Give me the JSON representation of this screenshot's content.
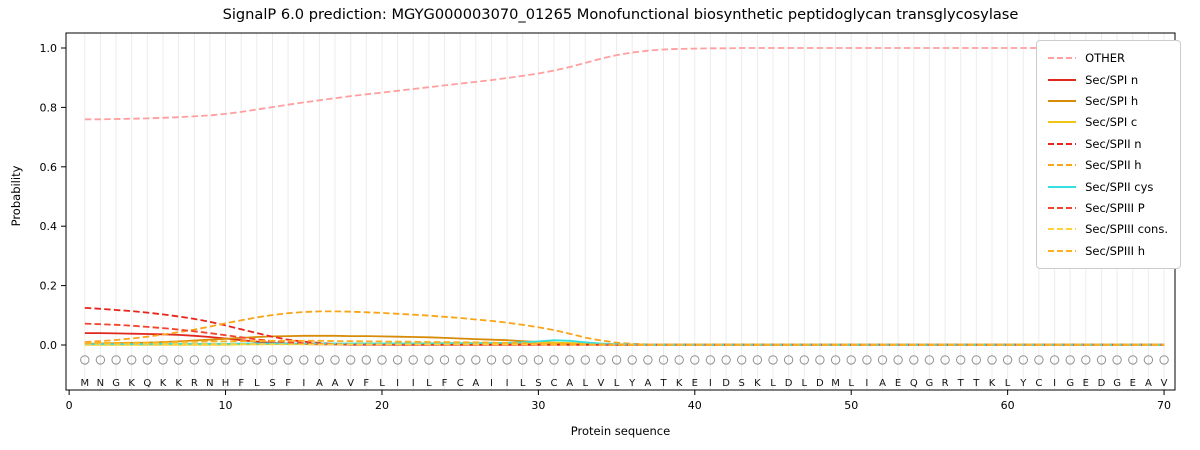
{
  "chart_data": {
    "type": "line",
    "title": "SignalP 6.0 prediction: MGYG000003070_01265 Monofunctional biosynthetic peptidoglycan transglycosylase",
    "xlabel": "Protein sequence",
    "ylabel": "Probability",
    "xlim": [
      -0.2,
      70.7
    ],
    "ylim": [
      -0.152,
      1.05
    ],
    "x_ticks": [
      0,
      10,
      20,
      30,
      40,
      50,
      60,
      70
    ],
    "y_ticks": [
      0.0,
      0.2,
      0.4,
      0.6,
      0.8,
      1.0
    ],
    "grid": "vertical-light-per-position",
    "legend_position": "upper right",
    "x_start": 1,
    "sequence": [
      "M",
      "N",
      "G",
      "K",
      "Q",
      "K",
      "K",
      "R",
      "N",
      "H",
      "F",
      "L",
      "S",
      "F",
      "I",
      "A",
      "A",
      "V",
      "F",
      "L",
      "I",
      "I",
      "L",
      "F",
      "C",
      "A",
      "I",
      "I",
      "L",
      "S",
      "C",
      "A",
      "L",
      "V",
      "L",
      "Y",
      "A",
      "T",
      "K",
      "E",
      "I",
      "D",
      "S",
      "K",
      "L",
      "D",
      "L",
      "D",
      "M",
      "L",
      "I",
      "A",
      "E",
      "Q",
      "G",
      "R",
      "T",
      "T",
      "K",
      "L",
      "Y",
      "C",
      "I",
      "G",
      "E",
      "D",
      "G",
      "E",
      "A",
      "V"
    ],
    "marker_row_value": -0.05,
    "letter_row_value": -0.125,
    "series": [
      {
        "name": "OTHER",
        "color": "#ff9f9f",
        "dash": true,
        "values": [
          0.76,
          0.76,
          0.761,
          0.762,
          0.763,
          0.765,
          0.767,
          0.77,
          0.773,
          0.778,
          0.785,
          0.793,
          0.801,
          0.809,
          0.817,
          0.824,
          0.831,
          0.838,
          0.844,
          0.85,
          0.856,
          0.862,
          0.868,
          0.874,
          0.88,
          0.886,
          0.892,
          0.899,
          0.906,
          0.914,
          0.924,
          0.936,
          0.95,
          0.964,
          0.976,
          0.985,
          0.991,
          0.995,
          0.997,
          0.998,
          0.999,
          0.999,
          1.0,
          1.0,
          1.0,
          1.0,
          1.0,
          1.0,
          1.0,
          1.0,
          1.0,
          1.0,
          1.0,
          1.0,
          1.0,
          1.0,
          1.0,
          1.0,
          1.0,
          1.0,
          1.0,
          1.0,
          1.0,
          1.0,
          1.0,
          1.0,
          1.0,
          1.0,
          1.0,
          1.0
        ]
      },
      {
        "name": "Sec/SPI n",
        "color": "#e0281e",
        "dash": false,
        "values": [
          0.04,
          0.04,
          0.039,
          0.038,
          0.037,
          0.036,
          0.034,
          0.031,
          0.027,
          0.022,
          0.016,
          0.011,
          0.007,
          0.005,
          0.003,
          0.002,
          0.002,
          0.001,
          0.001,
          0.001,
          0.001,
          0.001,
          0.001,
          0.001,
          0.001,
          0.001,
          0.001,
          0.001,
          0.001,
          0.001,
          0.001,
          0.001,
          0.001,
          0.001,
          0.001,
          0.001,
          0.001,
          0.001,
          0.001,
          0.001,
          0.001,
          0.001,
          0.001,
          0.001,
          0.001,
          0.001,
          0.001,
          0.001,
          0.001,
          0.001,
          0.001,
          0.001,
          0.001,
          0.001,
          0.001,
          0.001,
          0.001,
          0.001,
          0.001,
          0.001,
          0.001,
          0.001,
          0.001,
          0.001,
          0.001,
          0.001,
          0.001,
          0.001,
          0.001,
          0.001
        ]
      },
      {
        "name": "Sec/SPI h",
        "color": "#d78b07",
        "dash": false,
        "values": [
          0.004,
          0.005,
          0.006,
          0.007,
          0.008,
          0.01,
          0.012,
          0.015,
          0.018,
          0.021,
          0.024,
          0.027,
          0.029,
          0.03,
          0.031,
          0.031,
          0.031,
          0.03,
          0.03,
          0.029,
          0.028,
          0.027,
          0.026,
          0.024,
          0.022,
          0.02,
          0.018,
          0.016,
          0.013,
          0.01,
          0.008,
          0.005,
          0.003,
          0.002,
          0.001,
          0.001,
          0.001,
          0.001,
          0.001,
          0.001,
          0.001,
          0.001,
          0.001,
          0.001,
          0.001,
          0.001,
          0.001,
          0.001,
          0.001,
          0.001,
          0.001,
          0.001,
          0.001,
          0.001,
          0.001,
          0.001,
          0.001,
          0.001,
          0.001,
          0.001,
          0.001,
          0.001,
          0.001,
          0.001,
          0.001,
          0.001,
          0.001,
          0.001,
          0.001,
          0.001
        ]
      },
      {
        "name": "Sec/SPI c",
        "color": "#f0c514",
        "dash": false,
        "values": [
          0.001,
          0.001,
          0.001,
          0.001,
          0.001,
          0.001,
          0.001,
          0.001,
          0.001,
          0.001,
          0.002,
          0.002,
          0.003,
          0.003,
          0.004,
          0.004,
          0.004,
          0.005,
          0.005,
          0.005,
          0.005,
          0.005,
          0.006,
          0.006,
          0.006,
          0.006,
          0.007,
          0.007,
          0.007,
          0.008,
          0.008,
          0.007,
          0.005,
          0.003,
          0.002,
          0.001,
          0.001,
          0.001,
          0.001,
          0.001,
          0.001,
          0.001,
          0.001,
          0.001,
          0.001,
          0.001,
          0.001,
          0.001,
          0.001,
          0.001,
          0.001,
          0.001,
          0.001,
          0.001,
          0.001,
          0.001,
          0.001,
          0.001,
          0.001,
          0.001,
          0.001,
          0.001,
          0.001,
          0.001,
          0.001,
          0.001,
          0.001,
          0.001,
          0.001,
          0.001
        ]
      },
      {
        "name": "Sec/SPII n",
        "color": "#e8251c",
        "dash": true,
        "values": [
          0.125,
          0.122,
          0.118,
          0.114,
          0.109,
          0.103,
          0.096,
          0.088,
          0.078,
          0.066,
          0.053,
          0.04,
          0.028,
          0.018,
          0.011,
          0.007,
          0.004,
          0.003,
          0.002,
          0.002,
          0.001,
          0.001,
          0.001,
          0.001,
          0.001,
          0.001,
          0.001,
          0.001,
          0.001,
          0.001,
          0.001,
          0.001,
          0.001,
          0.001,
          0.001,
          0.001,
          0.001,
          0.001,
          0.001,
          0.001,
          0.001,
          0.001,
          0.001,
          0.001,
          0.001,
          0.001,
          0.001,
          0.001,
          0.001,
          0.001,
          0.001,
          0.001,
          0.001,
          0.001,
          0.001,
          0.001,
          0.001,
          0.001,
          0.001,
          0.001,
          0.001,
          0.001,
          0.001,
          0.001,
          0.001,
          0.001,
          0.001,
          0.001,
          0.001,
          0.001
        ]
      },
      {
        "name": "Sec/SPII h",
        "color": "#f9a51a",
        "dash": true,
        "values": [
          0.01,
          0.013,
          0.017,
          0.022,
          0.028,
          0.035,
          0.043,
          0.052,
          0.062,
          0.073,
          0.083,
          0.093,
          0.101,
          0.107,
          0.111,
          0.113,
          0.113,
          0.112,
          0.11,
          0.108,
          0.105,
          0.102,
          0.099,
          0.095,
          0.091,
          0.086,
          0.081,
          0.075,
          0.068,
          0.06,
          0.05,
          0.038,
          0.025,
          0.015,
          0.008,
          0.004,
          0.002,
          0.001,
          0.001,
          0.001,
          0.001,
          0.001,
          0.001,
          0.001,
          0.001,
          0.001,
          0.001,
          0.001,
          0.001,
          0.001,
          0.001,
          0.001,
          0.001,
          0.001,
          0.001,
          0.001,
          0.001,
          0.001,
          0.001,
          0.001,
          0.001,
          0.001,
          0.001,
          0.001,
          0.001,
          0.001,
          0.001,
          0.001,
          0.001,
          0.001
        ]
      },
      {
        "name": "Sec/SPII cys",
        "color": "#35e0e0",
        "dash": false,
        "values": [
          0.003,
          0.003,
          0.003,
          0.003,
          0.003,
          0.004,
          0.004,
          0.004,
          0.004,
          0.004,
          0.005,
          0.005,
          0.005,
          0.005,
          0.005,
          0.005,
          0.005,
          0.005,
          0.005,
          0.005,
          0.005,
          0.005,
          0.005,
          0.006,
          0.006,
          0.006,
          0.007,
          0.007,
          0.009,
          0.012,
          0.016,
          0.014,
          0.009,
          0.005,
          0.003,
          0.002,
          0.001,
          0.001,
          0.001,
          0.001,
          0.001,
          0.001,
          0.001,
          0.001,
          0.001,
          0.001,
          0.001,
          0.001,
          0.001,
          0.001,
          0.001,
          0.001,
          0.001,
          0.001,
          0.001,
          0.001,
          0.001,
          0.001,
          0.001,
          0.001,
          0.001,
          0.001,
          0.001,
          0.001,
          0.001,
          0.001,
          0.001,
          0.001,
          0.001,
          0.001
        ]
      },
      {
        "name": "Sec/SPIII P",
        "color": "#f4442e",
        "dash": true,
        "values": [
          0.072,
          0.07,
          0.068,
          0.065,
          0.061,
          0.057,
          0.052,
          0.046,
          0.04,
          0.033,
          0.026,
          0.019,
          0.013,
          0.009,
          0.006,
          0.004,
          0.003,
          0.002,
          0.002,
          0.001,
          0.001,
          0.001,
          0.001,
          0.001,
          0.001,
          0.001,
          0.001,
          0.001,
          0.001,
          0.001,
          0.001,
          0.001,
          0.001,
          0.001,
          0.001,
          0.001,
          0.001,
          0.001,
          0.001,
          0.001,
          0.001,
          0.001,
          0.001,
          0.001,
          0.001,
          0.001,
          0.001,
          0.001,
          0.001,
          0.001,
          0.001,
          0.001,
          0.001,
          0.001,
          0.001,
          0.001,
          0.001,
          0.001,
          0.001,
          0.001,
          0.001,
          0.001,
          0.001,
          0.001,
          0.001,
          0.001,
          0.001,
          0.001,
          0.001,
          0.001
        ]
      },
      {
        "name": "Sec/SPIII cons.",
        "color": "#ffd23c",
        "dash": true,
        "values": [
          0.004,
          0.004,
          0.004,
          0.004,
          0.004,
          0.003,
          0.003,
          0.003,
          0.003,
          0.003,
          0.003,
          0.003,
          0.002,
          0.002,
          0.002,
          0.002,
          0.002,
          0.002,
          0.002,
          0.002,
          0.002,
          0.002,
          0.002,
          0.002,
          0.002,
          0.002,
          0.002,
          0.002,
          0.002,
          0.002,
          0.001,
          0.001,
          0.001,
          0.001,
          0.001,
          0.001,
          0.001,
          0.001,
          0.001,
          0.001,
          0.001,
          0.001,
          0.001,
          0.001,
          0.001,
          0.001,
          0.001,
          0.001,
          0.001,
          0.001,
          0.001,
          0.001,
          0.001,
          0.001,
          0.001,
          0.001,
          0.001,
          0.001,
          0.001,
          0.001,
          0.001,
          0.001,
          0.001,
          0.001,
          0.001,
          0.001,
          0.001,
          0.001,
          0.001,
          0.001
        ]
      },
      {
        "name": "Sec/SPIII h",
        "color": "#ffb020",
        "dash": true,
        "values": [
          0.006,
          0.007,
          0.007,
          0.008,
          0.008,
          0.009,
          0.01,
          0.011,
          0.012,
          0.012,
          0.013,
          0.013,
          0.014,
          0.014,
          0.014,
          0.014,
          0.013,
          0.013,
          0.012,
          0.012,
          0.011,
          0.011,
          0.01,
          0.01,
          0.009,
          0.009,
          0.008,
          0.007,
          0.006,
          0.005,
          0.004,
          0.003,
          0.002,
          0.002,
          0.001,
          0.001,
          0.001,
          0.001,
          0.001,
          0.001,
          0.001,
          0.001,
          0.001,
          0.001,
          0.001,
          0.001,
          0.001,
          0.001,
          0.001,
          0.001,
          0.001,
          0.001,
          0.001,
          0.001,
          0.001,
          0.001,
          0.001,
          0.001,
          0.001,
          0.001,
          0.001,
          0.001,
          0.001,
          0.001,
          0.001,
          0.001,
          0.001,
          0.001,
          0.001,
          0.001
        ]
      }
    ]
  }
}
